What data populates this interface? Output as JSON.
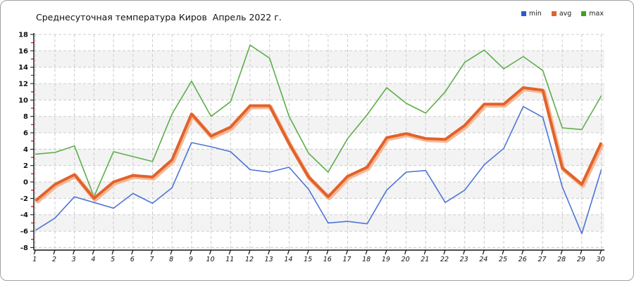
{
  "title": "Среднесуточная температура Киров  Апрель 2022 г.",
  "legend": {
    "items": [
      {
        "label": "min",
        "color": "#2b59d0"
      },
      {
        "label": "avg",
        "color": "#e2622a"
      },
      {
        "label": "max",
        "color": "#3da31e"
      }
    ]
  },
  "colors": {
    "min_line": "#4f74d8",
    "avg_line": "#e2622a",
    "avg_halo": "#f4ad85",
    "max_line": "#5ead4b",
    "grid": "#cccccc",
    "band": "#f3f3f3",
    "axis": "#111111",
    "minor_tick": "#cc3333"
  },
  "chart_data": {
    "type": "line",
    "title": "Среднесуточная температура Киров  Апрель 2022 г.",
    "xlabel": "",
    "ylabel": "",
    "x": [
      1,
      2,
      3,
      4,
      5,
      6,
      7,
      8,
      9,
      10,
      11,
      12,
      13,
      14,
      15,
      16,
      17,
      18,
      19,
      20,
      21,
      22,
      23,
      24,
      25,
      26,
      27,
      28,
      29,
      30
    ],
    "series": [
      {
        "name": "min",
        "values": [
          -5.9,
          -4.4,
          -1.8,
          -2.5,
          -3.2,
          -1.4,
          -2.6,
          -0.7,
          4.8,
          4.3,
          3.7,
          1.5,
          1.2,
          1.8,
          -0.9,
          -5.0,
          -4.8,
          -5.1,
          -1.0,
          1.2,
          1.4,
          -2.5,
          -1.0,
          2.1,
          4.1,
          9.2,
          7.9,
          -0.6,
          -6.3,
          1.5
        ]
      },
      {
        "name": "avg",
        "values": [
          -2.3,
          -0.3,
          0.9,
          -2.0,
          0.0,
          0.8,
          0.6,
          2.7,
          8.3,
          5.6,
          6.7,
          9.3,
          9.3,
          4.7,
          0.6,
          -1.8,
          0.7,
          1.8,
          5.4,
          5.9,
          5.3,
          5.2,
          6.9,
          9.5,
          9.5,
          11.5,
          11.2,
          1.7,
          -0.3,
          4.8
        ]
      },
      {
        "name": "max",
        "values": [
          3.4,
          3.6,
          4.4,
          -1.8,
          3.7,
          3.1,
          2.5,
          8.3,
          12.3,
          8.0,
          9.8,
          16.7,
          15.1,
          8.0,
          3.5,
          1.2,
          5.3,
          8.2,
          11.5,
          9.6,
          8.4,
          11.0,
          14.6,
          16.1,
          13.8,
          15.3,
          13.6,
          6.6,
          6.4,
          10.5
        ]
      }
    ],
    "ylim": [
      -8,
      18
    ],
    "ytick_step": 2,
    "yticks": [
      18,
      16,
      14,
      12,
      10,
      8,
      6,
      4,
      2,
      0,
      -2,
      -4,
      -6,
      -8
    ],
    "grid": true,
    "grid_style": "dashed",
    "legend_position": "top-right",
    "legend_entries": [
      "min",
      "avg",
      "max"
    ]
  }
}
